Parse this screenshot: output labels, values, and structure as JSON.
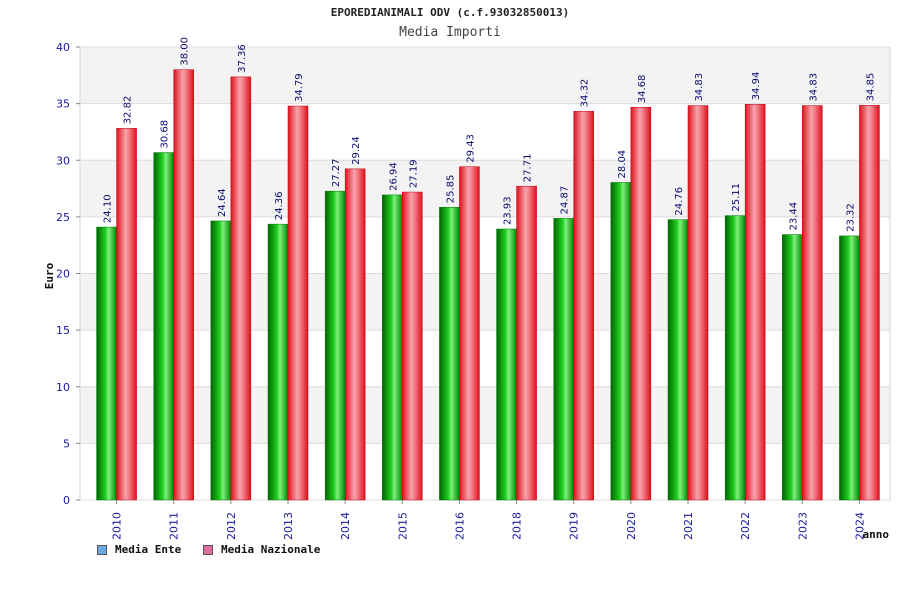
{
  "header": {
    "title": "EPOREDIANIMALI ODV (c.f.93032850013)",
    "subtitle": "Media Importi"
  },
  "legend": {
    "items": [
      {
        "label": "Media Ente",
        "color": "#6fa8dc"
      },
      {
        "label": "Media Nazionale",
        "color": "#e06c9f"
      }
    ]
  },
  "colors": {
    "ente": "#00b400",
    "nazionale": "#e8242f",
    "axis_text": "#1a1a9e",
    "label_text": "#0a0a6e"
  },
  "chart_data": {
    "type": "bar",
    "title": "Media Importi",
    "xlabel": "anno",
    "ylabel": "Euro",
    "ylim": [
      0,
      40
    ],
    "yticks": [
      0,
      5,
      10,
      15,
      20,
      25,
      30,
      35,
      40
    ],
    "categories": [
      "2010",
      "2011",
      "2012",
      "2013",
      "2014",
      "2015",
      "2016",
      "2018",
      "2019",
      "2020",
      "2021",
      "2022",
      "2023",
      "2024"
    ],
    "series": [
      {
        "name": "Media Ente",
        "values": [
          24.1,
          30.68,
          24.64,
          24.36,
          27.27,
          26.94,
          25.85,
          23.93,
          24.87,
          28.04,
          24.76,
          25.11,
          23.44,
          23.32
        ],
        "labels": [
          "24.10",
          "30.68",
          "24.64",
          "24.36",
          "27.27",
          "26.94",
          "25.85",
          "23.93",
          "24.87",
          "28.04",
          "24.76",
          "25.11",
          "23.44",
          "23.32"
        ]
      },
      {
        "name": "Media Nazionale",
        "values": [
          32.82,
          38.0,
          37.36,
          34.79,
          29.24,
          27.19,
          29.43,
          27.71,
          34.32,
          34.68,
          34.83,
          34.94,
          34.83,
          34.85
        ],
        "labels": [
          "32.82",
          "38.00",
          "37.36",
          "34.79",
          "29.24",
          "27.19",
          "29.43",
          "27.71",
          "34.32",
          "34.68",
          "34.83",
          "34.94",
          "34.83",
          "34.85"
        ]
      }
    ]
  }
}
